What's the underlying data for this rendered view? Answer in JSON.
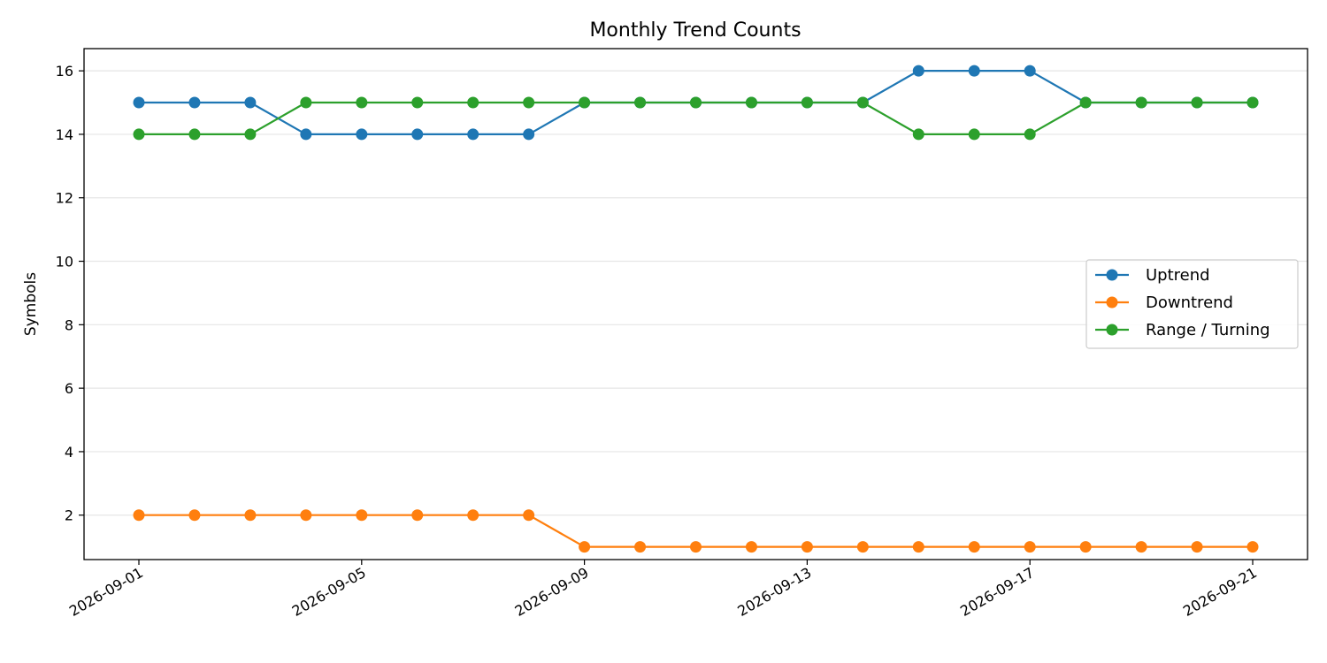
{
  "chart_data": {
    "type": "line",
    "title": "Monthly Trend Counts",
    "xlabel": "",
    "ylabel": "Symbols",
    "x": [
      "2026-09-01",
      "2026-09-02",
      "2026-09-03",
      "2026-09-04",
      "2026-09-05",
      "2026-09-06",
      "2026-09-07",
      "2026-09-08",
      "2026-09-09",
      "2026-09-10",
      "2026-09-11",
      "2026-09-12",
      "2026-09-13",
      "2026-09-14",
      "2026-09-15",
      "2026-09-16",
      "2026-09-17",
      "2026-09-18",
      "2026-09-19",
      "2026-09-20",
      "2026-09-21"
    ],
    "x_tick_labels": [
      "2026-09-01",
      "2026-09-05",
      "2026-09-09",
      "2026-09-13",
      "2026-09-17",
      "2026-09-21"
    ],
    "y_ticks": [
      2,
      4,
      6,
      8,
      10,
      12,
      14,
      16
    ],
    "ylim": [
      0.6,
      16.7
    ],
    "grid": "horizontal",
    "legend_position": "center-right",
    "series": [
      {
        "name": "Uptrend",
        "color": "#1f77b4",
        "marker": "circle",
        "values": [
          15,
          15,
          15,
          14,
          14,
          14,
          14,
          14,
          15,
          15,
          15,
          15,
          15,
          15,
          16,
          16,
          16,
          15,
          15,
          15,
          15
        ]
      },
      {
        "name": "Downtrend",
        "color": "#ff7f0e",
        "marker": "circle",
        "values": [
          2,
          2,
          2,
          2,
          2,
          2,
          2,
          2,
          1,
          1,
          1,
          1,
          1,
          1,
          1,
          1,
          1,
          1,
          1,
          1,
          1
        ]
      },
      {
        "name": "Range / Turning",
        "color": "#2ca02c",
        "marker": "circle",
        "values": [
          14,
          14,
          14,
          15,
          15,
          15,
          15,
          15,
          15,
          15,
          15,
          15,
          15,
          15,
          14,
          14,
          14,
          15,
          15,
          15,
          15
        ]
      }
    ]
  }
}
